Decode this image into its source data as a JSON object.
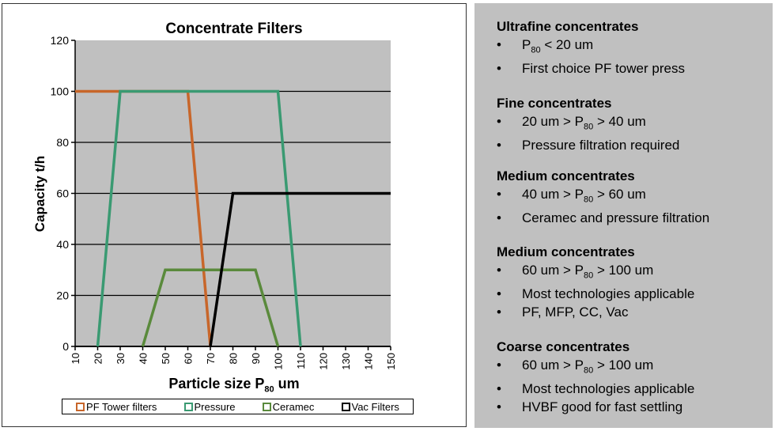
{
  "chart_data": {
    "type": "line",
    "title": "Concentrate Filters",
    "xlabel": "Particle size P80 um",
    "xlabel_main": "Particle size P",
    "xlabel_sub": "80",
    "xlabel_tail": " um",
    "ylabel": "Capacity t/h",
    "xlim": [
      10,
      150
    ],
    "ylim": [
      0,
      120
    ],
    "x_ticks": [
      10,
      20,
      30,
      40,
      50,
      60,
      70,
      80,
      90,
      100,
      110,
      120,
      130,
      140,
      150
    ],
    "y_ticks": [
      0,
      20,
      40,
      60,
      80,
      100,
      120
    ],
    "grid": "horizontal",
    "legend_position": "bottom",
    "series": [
      {
        "name": "PF Tower filters",
        "color": "#c8662a",
        "points": [
          [
            10,
            100
          ],
          [
            60,
            100
          ],
          [
            70,
            0
          ]
        ]
      },
      {
        "name": "Pressure",
        "color": "#3a9a72",
        "points": [
          [
            20,
            0
          ],
          [
            30,
            100
          ],
          [
            100,
            100
          ],
          [
            110,
            0
          ]
        ]
      },
      {
        "name": "Ceramec",
        "color": "#5a8a3c",
        "points": [
          [
            40,
            0
          ],
          [
            50,
            30
          ],
          [
            90,
            30
          ],
          [
            100,
            0
          ]
        ]
      },
      {
        "name": "Vac Filters",
        "color": "#000000",
        "points": [
          [
            70,
            0
          ],
          [
            80,
            60
          ],
          [
            150,
            60
          ]
        ]
      }
    ]
  },
  "plot_style": {
    "background": "#c0c0c0",
    "gridline": "#000000"
  },
  "panel": {
    "sections": [
      {
        "title": "Ultrafine concentrates",
        "bullets": [
          {
            "pre": "P",
            "sub": "80",
            "post": " < 20 um"
          },
          {
            "pre": "First choice PF tower press"
          }
        ]
      },
      {
        "title": "Fine concentrates",
        "bullets": [
          {
            "pre": "20 um > P",
            "sub": "80",
            "post": " > 40 um"
          },
          {
            "pre": "Pressure filtration required"
          }
        ]
      },
      {
        "title": "Medium concentrates",
        "bullets": [
          {
            "pre": "40 um > P",
            "sub": "80",
            "post": " > 60 um"
          },
          {
            "pre": "Ceramec and pressure filtration"
          }
        ]
      },
      {
        "title": "Medium concentrates",
        "bullets": [
          {
            "pre": "60 um > P",
            "sub": "80",
            "post": " > 100 um"
          },
          {
            "pre": "Most technologies applicable"
          },
          {
            "pre": "PF, MFP, CC, Vac"
          }
        ]
      },
      {
        "title": "Coarse concentrates",
        "bullets": [
          {
            "pre": "60 um > P",
            "sub": "80",
            "post": " > 100 um"
          },
          {
            "pre": "Most technologies applicable"
          },
          {
            "pre": "HVBF good for fast settling"
          }
        ]
      }
    ],
    "bullet_char": "•"
  }
}
